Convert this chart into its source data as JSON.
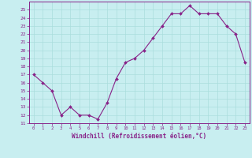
{
  "x": [
    0,
    1,
    2,
    3,
    4,
    5,
    6,
    7,
    8,
    9,
    10,
    11,
    12,
    13,
    14,
    15,
    16,
    17,
    18,
    19,
    20,
    21,
    22,
    23
  ],
  "y": [
    17,
    16,
    15,
    12,
    13,
    12,
    12,
    11.5,
    13.5,
    16.5,
    18.5,
    19,
    20,
    21.5,
    23,
    24.5,
    24.5,
    25.5,
    24.5,
    24.5,
    24.5,
    23,
    22,
    18.5
  ],
  "line_color": "#882288",
  "marker_color": "#882288",
  "bg_color": "#c8eef0",
  "grid_color": "#aadddd",
  "xlabel": "Windchill (Refroidissement éolien,°C)",
  "bottom_bar_color": "#7700aa",
  "ylim": [
    11,
    26
  ],
  "xlim": [
    -0.5,
    23.5
  ],
  "yticks": [
    11,
    12,
    13,
    14,
    15,
    16,
    17,
    18,
    19,
    20,
    21,
    22,
    23,
    24,
    25
  ],
  "xticks": [
    0,
    1,
    2,
    3,
    4,
    5,
    6,
    7,
    8,
    9,
    10,
    11,
    12,
    13,
    14,
    15,
    16,
    17,
    18,
    19,
    20,
    21,
    22,
    23
  ],
  "tick_color": "#882288",
  "spine_color": "#882288",
  "xlabel_color": "#882288"
}
